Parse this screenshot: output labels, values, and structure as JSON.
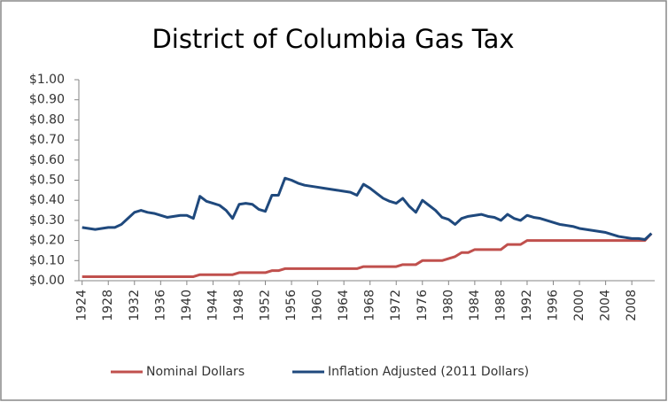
{
  "chart_data": {
    "type": "line",
    "title": "District of Columbia Gas Tax",
    "x": [
      1924,
      1925,
      1926,
      1927,
      1928,
      1929,
      1930,
      1931,
      1932,
      1933,
      1934,
      1935,
      1936,
      1937,
      1938,
      1939,
      1940,
      1941,
      1942,
      1943,
      1944,
      1945,
      1946,
      1947,
      1948,
      1949,
      1950,
      1951,
      1952,
      1953,
      1954,
      1955,
      1956,
      1957,
      1958,
      1959,
      1960,
      1961,
      1962,
      1963,
      1964,
      1965,
      1966,
      1967,
      1968,
      1969,
      1970,
      1971,
      1972,
      1973,
      1974,
      1975,
      1976,
      1977,
      1978,
      1979,
      1980,
      1981,
      1982,
      1983,
      1984,
      1985,
      1986,
      1987,
      1988,
      1989,
      1990,
      1991,
      1992,
      1993,
      1994,
      1995,
      1996,
      1997,
      1998,
      1999,
      2000,
      2001,
      2002,
      2003,
      2004,
      2005,
      2006,
      2007,
      2008,
      2009,
      2010,
      2011
    ],
    "series": [
      {
        "name": "Nominal Dollars",
        "color": "#c0504d",
        "values": [
          0.02,
          0.02,
          0.02,
          0.02,
          0.02,
          0.02,
          0.02,
          0.02,
          0.02,
          0.02,
          0.02,
          0.02,
          0.02,
          0.02,
          0.02,
          0.02,
          0.02,
          0.02,
          0.03,
          0.03,
          0.03,
          0.03,
          0.03,
          0.03,
          0.04,
          0.04,
          0.04,
          0.04,
          0.04,
          0.05,
          0.05,
          0.06,
          0.06,
          0.06,
          0.06,
          0.06,
          0.06,
          0.06,
          0.06,
          0.06,
          0.06,
          0.06,
          0.06,
          0.07,
          0.07,
          0.07,
          0.07,
          0.07,
          0.07,
          0.08,
          0.08,
          0.08,
          0.1,
          0.1,
          0.1,
          0.1,
          0.11,
          0.12,
          0.14,
          0.14,
          0.155,
          0.155,
          0.155,
          0.155,
          0.155,
          0.18,
          0.18,
          0.18,
          0.2,
          0.2,
          0.2,
          0.2,
          0.2,
          0.2,
          0.2,
          0.2,
          0.2,
          0.2,
          0.2,
          0.2,
          0.2,
          0.2,
          0.2,
          0.2,
          0.2,
          0.2,
          0.2,
          0.235
        ]
      },
      {
        "name": "Inflation Adjusted (2011 Dollars)",
        "color": "#1f497d",
        "values": [
          0.265,
          0.26,
          0.255,
          0.26,
          0.265,
          0.265,
          0.28,
          0.31,
          0.34,
          0.35,
          0.34,
          0.335,
          0.325,
          0.315,
          0.32,
          0.325,
          0.325,
          0.31,
          0.42,
          0.395,
          0.385,
          0.375,
          0.35,
          0.31,
          0.38,
          0.385,
          0.38,
          0.355,
          0.345,
          0.425,
          0.425,
          0.51,
          0.5,
          0.485,
          0.475,
          0.47,
          0.465,
          0.46,
          0.455,
          0.45,
          0.445,
          0.44,
          0.425,
          0.48,
          0.46,
          0.435,
          0.41,
          0.395,
          0.385,
          0.41,
          0.37,
          0.34,
          0.4,
          0.375,
          0.35,
          0.315,
          0.305,
          0.28,
          0.31,
          0.32,
          0.325,
          0.33,
          0.32,
          0.315,
          0.3,
          0.33,
          0.31,
          0.3,
          0.325,
          0.315,
          0.31,
          0.3,
          0.29,
          0.28,
          0.275,
          0.27,
          0.26,
          0.255,
          0.25,
          0.245,
          0.24,
          0.23,
          0.22,
          0.215,
          0.21,
          0.21,
          0.205,
          0.235
        ]
      }
    ],
    "xlim": [
      1923.5,
      2011.5
    ],
    "xticks": [
      1924,
      1928,
      1932,
      1936,
      1940,
      1944,
      1948,
      1952,
      1956,
      1960,
      1964,
      1968,
      1972,
      1976,
      1980,
      1984,
      1988,
      1992,
      1996,
      2000,
      2004,
      2008
    ],
    "ylim": [
      0,
      1
    ],
    "yticks": [
      {
        "value": 0,
        "label": "$0.00"
      },
      {
        "value": 0.1,
        "label": "$0.10"
      },
      {
        "value": 0.2,
        "label": "$0.20"
      },
      {
        "value": 0.3,
        "label": "$0.30"
      },
      {
        "value": 0.4,
        "label": "$0.40"
      },
      {
        "value": 0.5,
        "label": "$0.50"
      },
      {
        "value": 0.6,
        "label": "$0.60"
      },
      {
        "value": 0.7,
        "label": "$0.70"
      },
      {
        "value": 0.8,
        "label": "$0.80"
      },
      {
        "value": 0.9,
        "label": "$0.90"
      },
      {
        "value": 1,
        "label": "$1.00"
      }
    ],
    "grid": false,
    "legend": "bottom"
  }
}
